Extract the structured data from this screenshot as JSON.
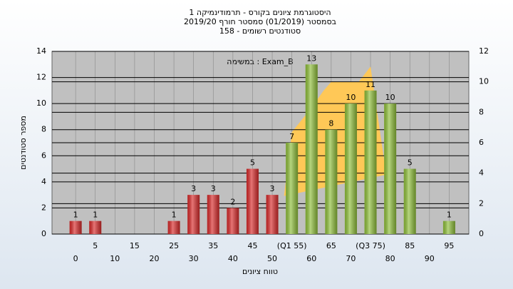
{
  "chart_data": {
    "type": "bar",
    "title": [
      "היסטוגרמת ציונים בקורס - תרמודינמיקה 1",
      "בסמסטר (01/2019) סמסטר חורף 2019/20",
      "סטודנטים רשומים - 158"
    ],
    "annotation": "במשימה : Exam_B",
    "xlabel": "טווח ציונים",
    "ylabel": "מספר סטודנטים",
    "x": [
      0,
      5,
      25,
      30,
      35,
      40,
      45,
      50,
      55,
      60,
      65,
      70,
      75,
      80,
      85,
      95
    ],
    "values": [
      1,
      1,
      1,
      3,
      3,
      2,
      5,
      3,
      7,
      13,
      8,
      10,
      11,
      10,
      5,
      1
    ],
    "colors": [
      "#d92b2b",
      "#d92b2b",
      "#d92b2b",
      "#d92b2b",
      "#d92b2b",
      "#d92b2b",
      "#d92b2b",
      "#d92b2b",
      "#8fbf3a",
      "#8fbf3a",
      "#8fbf3a",
      "#8fbf3a",
      "#8fbf3a",
      "#8fbf3a",
      "#8fbf3a",
      "#8fbf3a"
    ],
    "area": {
      "axis": "y2",
      "color": "#ffc857",
      "x": [
        53,
        55,
        60,
        63,
        65,
        72,
        75,
        79
      ],
      "values": [
        2.5,
        6.7,
        8.3,
        9.4,
        10,
        10,
        11,
        3.9
      ]
    },
    "xlim": [
      -6,
      100
    ],
    "xticks": [
      0,
      5,
      10,
      15,
      20,
      25,
      30,
      35,
      40,
      45,
      50,
      {
        "value": 55,
        "label": "(Q1 55)"
      },
      60,
      65,
      70,
      {
        "value": 75,
        "label": "(Q3 75)"
      },
      80,
      85,
      90,
      95
    ],
    "ylim": [
      0,
      14
    ],
    "yticks": [
      0,
      2,
      4,
      6,
      8,
      10,
      12,
      14
    ],
    "y2lim": [
      0,
      12
    ],
    "y2ticks": [
      0,
      2,
      4,
      6,
      8,
      10,
      12
    ],
    "grid": true
  }
}
